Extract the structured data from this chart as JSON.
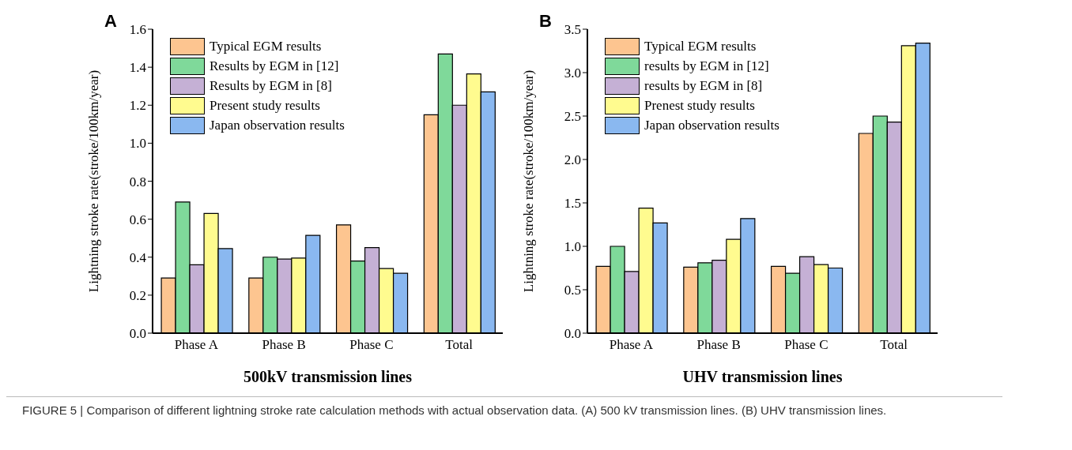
{
  "chart_data": [
    {
      "type": "bar",
      "title": "A",
      "xlabel": "500kV  transmission lines",
      "ylabel": "Lightning stroke rate(stroke/100km/year)",
      "categories": [
        "Phase A",
        "Phase B",
        "Phase C",
        "Total"
      ],
      "ylim": [
        0,
        1.6
      ],
      "yticks": [
        {
          "value": 0,
          "label": "0.0"
        },
        0.2,
        0.4,
        0.6,
        0.8,
        {
          "value": 1,
          "label": "1.0"
        },
        1.2,
        1.4,
        1.6
      ],
      "legend": "top left",
      "grid": false,
      "series": [
        {
          "name": "Typical EGM results",
          "color": "#fdc590",
          "values": [
            0.29,
            0.29,
            0.57,
            1.15
          ]
        },
        {
          "name": "Results by EGM in [12]",
          "color": "#7fd99a",
          "values": [
            0.69,
            0.4,
            0.38,
            1.47
          ]
        },
        {
          "name": "Results by EGM in [8]",
          "color": "#c5b0d5",
          "values": [
            0.36,
            0.39,
            0.45,
            1.2
          ]
        },
        {
          "name": "Present study results",
          "color": "#fffb8f",
          "values": [
            0.63,
            0.395,
            0.34,
            1.365
          ]
        },
        {
          "name": "Japan observation results",
          "color": "#8ab8f0",
          "values": [
            0.445,
            0.515,
            0.315,
            1.27
          ]
        }
      ],
      "annotations": [
        "FIGURE 5 | Comparison of different lightning stroke rate calculation methods with actual observation data. (A) 500 kV transmission lines. (B) UHV transmission lines."
      ]
    },
    {
      "type": "bar",
      "title": "B",
      "xlabel": "UHV  transmission lines",
      "ylabel": "Lightning stroke rate(stroke/100km/year)",
      "categories": [
        "Phase A",
        "Phase B",
        "Phase C",
        "Total"
      ],
      "ylim": [
        0,
        3.5
      ],
      "yticks": [
        {
          "value": 0,
          "label": "0.0"
        },
        0.5,
        {
          "value": 1,
          "label": "1.0"
        },
        1.5,
        {
          "value": 2,
          "label": "2.0"
        },
        2.5,
        {
          "value": 3,
          "label": "3.0"
        },
        3.5
      ],
      "legend": "top left",
      "grid": false,
      "series": [
        {
          "name": "Typical EGM results",
          "color": "#fdc590",
          "values": [
            0.77,
            0.76,
            0.77,
            2.3
          ]
        },
        {
          "name": "results by EGM in [12]",
          "color": "#7fd99a",
          "values": [
            1.0,
            0.81,
            0.69,
            2.5
          ]
        },
        {
          "name": "results by EGM in [8]",
          "color": "#c5b0d5",
          "values": [
            0.71,
            0.84,
            0.88,
            2.43
          ]
        },
        {
          "name": "Prenest study results",
          "color": "#fffb8f",
          "values": [
            1.44,
            1.08,
            0.79,
            3.31
          ]
        },
        {
          "name": "Japan observation results",
          "color": "#8ab8f0",
          "values": [
            1.27,
            1.32,
            0.75,
            3.34
          ]
        }
      ]
    }
  ]
}
